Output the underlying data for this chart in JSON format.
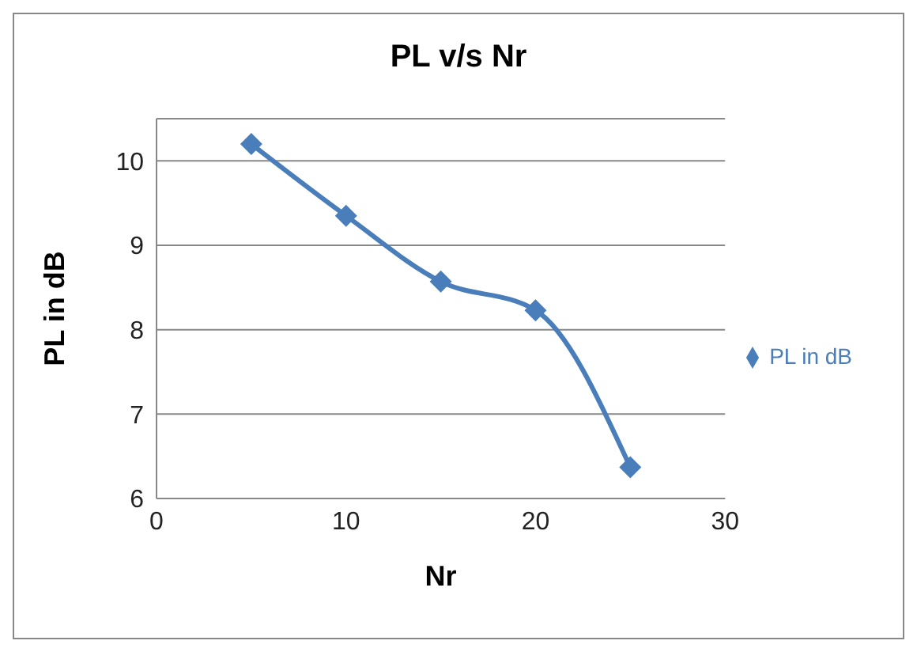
{
  "chart_data": {
    "type": "line",
    "title": "PL v/s Nr",
    "xlabel": "Nr",
    "ylabel": "PL in dB",
    "x": [
      5,
      10,
      15,
      20,
      25
    ],
    "series": [
      {
        "name": "PL in dB",
        "color": "#4a7ebb",
        "values": [
          10.2,
          9.35,
          8.57,
          8.23,
          6.37
        ]
      }
    ],
    "xlim": [
      0,
      30
    ],
    "xticks": [
      0,
      10,
      20,
      30
    ],
    "ylim": [
      6,
      10.5
    ],
    "yticks": [
      6,
      7,
      8,
      9,
      10
    ],
    "grid": "y",
    "legend": "right",
    "marker": "diamond",
    "line_style": "solid"
  }
}
